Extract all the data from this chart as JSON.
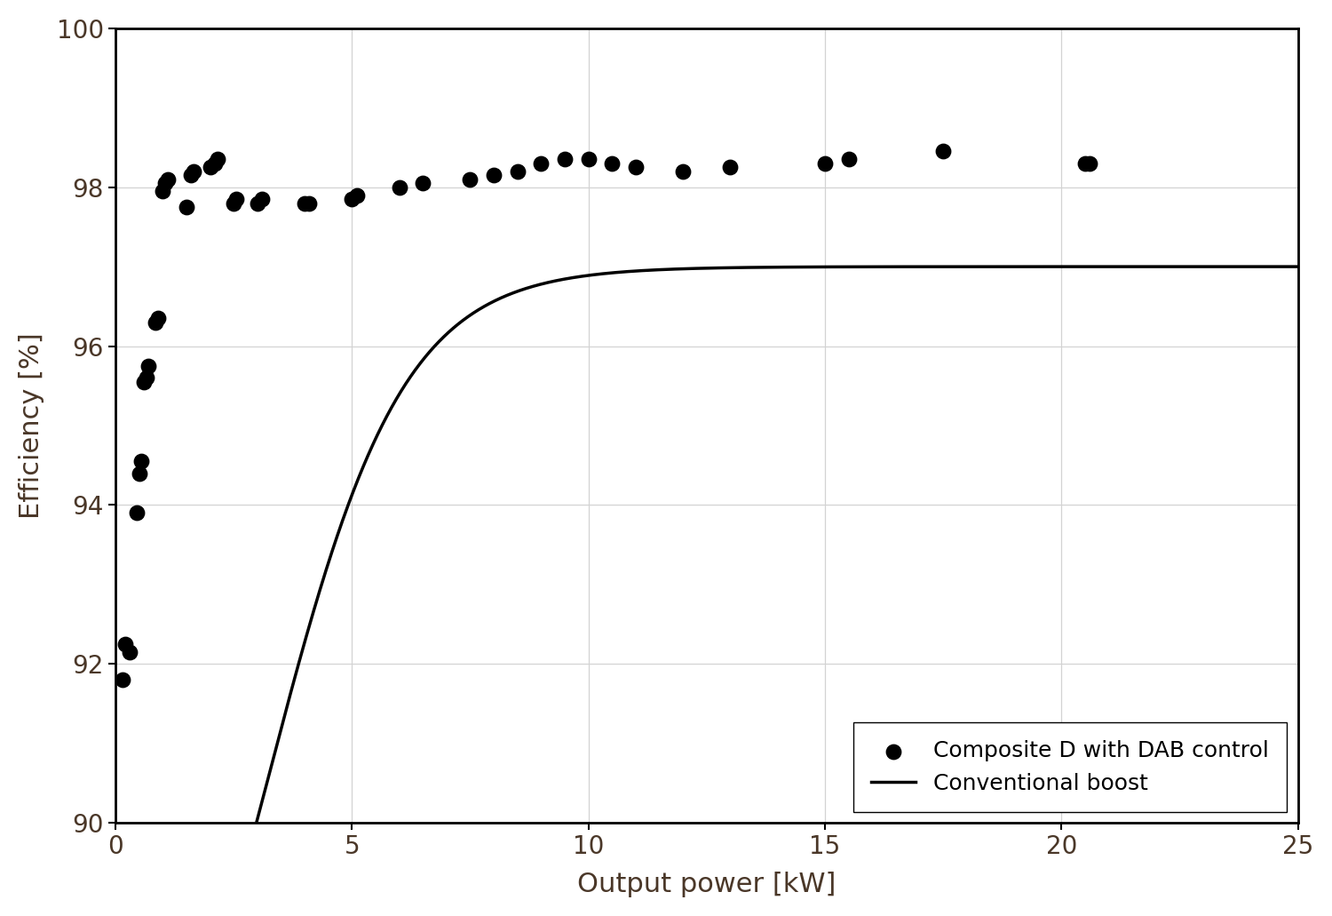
{
  "title": "",
  "xlabel": "Output power [kW]",
  "ylabel": "Efficiency [%]",
  "xlim": [
    0,
    25
  ],
  "ylim": [
    90,
    100
  ],
  "yticks": [
    90,
    92,
    94,
    96,
    98,
    100
  ],
  "xticks": [
    0,
    5,
    10,
    15,
    20,
    25
  ],
  "grid_color": "#d3d3d3",
  "background_color": "#ffffff",
  "scatter_color": "#000000",
  "line_color": "#000000",
  "scatter_points": [
    [
      0.15,
      91.8
    ],
    [
      0.2,
      92.25
    ],
    [
      0.3,
      92.15
    ],
    [
      0.45,
      93.9
    ],
    [
      0.5,
      94.4
    ],
    [
      0.55,
      94.55
    ],
    [
      0.6,
      95.55
    ],
    [
      0.65,
      95.6
    ],
    [
      0.7,
      95.75
    ],
    [
      0.85,
      96.3
    ],
    [
      0.9,
      96.35
    ],
    [
      1.0,
      97.95
    ],
    [
      1.05,
      98.05
    ],
    [
      1.1,
      98.1
    ],
    [
      1.5,
      97.75
    ],
    [
      1.6,
      98.15
    ],
    [
      1.65,
      98.2
    ],
    [
      2.0,
      98.25
    ],
    [
      2.1,
      98.3
    ],
    [
      2.15,
      98.35
    ],
    [
      2.5,
      97.8
    ],
    [
      2.55,
      97.85
    ],
    [
      3.0,
      97.8
    ],
    [
      3.1,
      97.85
    ],
    [
      4.0,
      97.8
    ],
    [
      4.1,
      97.8
    ],
    [
      5.0,
      97.85
    ],
    [
      5.1,
      97.9
    ],
    [
      6.0,
      98.0
    ],
    [
      6.5,
      98.05
    ],
    [
      7.5,
      98.1
    ],
    [
      8.0,
      98.15
    ],
    [
      8.5,
      98.2
    ],
    [
      9.0,
      98.3
    ],
    [
      9.5,
      98.35
    ],
    [
      10.0,
      98.35
    ],
    [
      10.5,
      98.3
    ],
    [
      11.0,
      98.25
    ],
    [
      12.0,
      98.2
    ],
    [
      13.0,
      98.25
    ],
    [
      15.0,
      98.3
    ],
    [
      15.5,
      98.35
    ],
    [
      17.5,
      98.45
    ],
    [
      20.5,
      98.3
    ],
    [
      20.6,
      98.3
    ]
  ],
  "legend_scatter_label": "Composite D with DAB control",
  "legend_line_label": "Conventional boost",
  "scatter_size": 140,
  "line_width": 2.5,
  "axis_label_fontsize": 22,
  "tick_fontsize": 20,
  "legend_fontsize": 18,
  "boost_asymptote": 97.0,
  "boost_k": 0.7,
  "boost_x0": 3.2,
  "boost_x_start": 0.0,
  "boost_x_end": 25.0,
  "tick_color": "#4a3728",
  "label_color": "#4a3728",
  "spine_color": "#000000",
  "spine_linewidth": 2.0
}
